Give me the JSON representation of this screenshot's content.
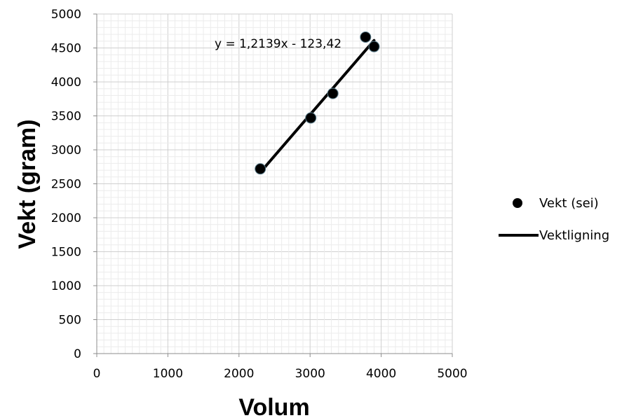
{
  "chart_data": {
    "type": "scatter",
    "xlabel": "Volum",
    "ylabel": "Vekt (gram)",
    "xlim": [
      0,
      5000
    ],
    "ylim": [
      0,
      5000
    ],
    "x_ticks": [
      0,
      1000,
      2000,
      3000,
      4000,
      5000
    ],
    "y_ticks": [
      0,
      500,
      1000,
      1500,
      2000,
      2500,
      3000,
      3500,
      4000,
      4500,
      5000
    ],
    "grid": true,
    "legend_position": "right",
    "series": [
      {
        "name": "Vekt (sei)",
        "kind": "scatter",
        "color": "#000000",
        "points": [
          {
            "x": 2300,
            "y": 2720
          },
          {
            "x": 3010,
            "y": 3470
          },
          {
            "x": 3320,
            "y": 3830
          },
          {
            "x": 3780,
            "y": 4660
          },
          {
            "x": 3900,
            "y": 4520
          }
        ]
      },
      {
        "name": "Vektligning",
        "kind": "line",
        "color": "#000000",
        "points": [
          {
            "x": 2300,
            "y": 2668
          },
          {
            "x": 3900,
            "y": 4611
          }
        ]
      }
    ],
    "annotation": "y = 1,2139x - 123,42"
  }
}
